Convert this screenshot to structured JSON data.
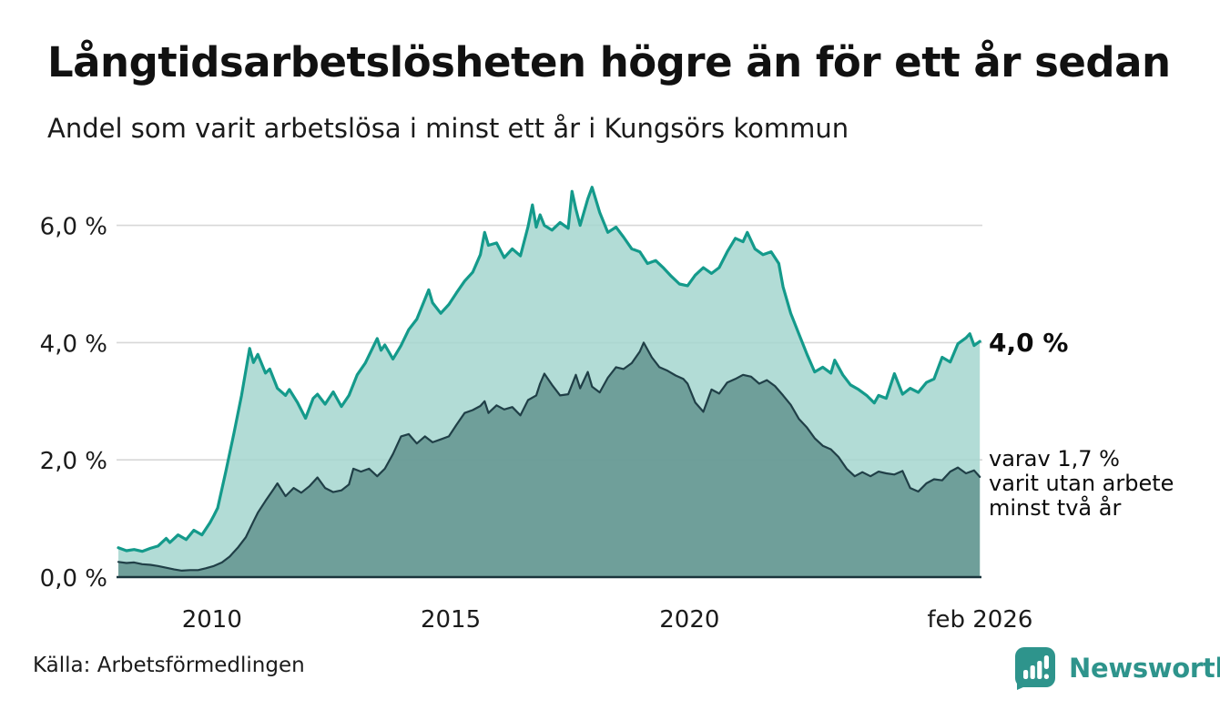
{
  "header": {
    "title": "Långtidsarbetslösheten högre än för ett år sedan",
    "subtitle": "Andel som varit arbetslösa i minst ett år i Kungsörs kommun"
  },
  "annotations": {
    "series1_end_value": "4,0 %",
    "series2_line1": "varav 1,7 %",
    "series2_line2": "varit utan arbete",
    "series2_line3": "minst två år"
  },
  "footer": {
    "source": "Källa: Arbetsförmedlingen",
    "brand_name": "Newsworthy"
  },
  "colors": {
    "background": "#ffffff",
    "title_text": "#111111",
    "body_text": "#1b1b1b",
    "series1_line": "#149a8b",
    "series1_fill": "#a5d6cf",
    "series2_line": "#203f47",
    "series2_fill": "#63948f",
    "gridline": "#d7d7d7",
    "axis_line": "#1a343c",
    "brand_teal": "#2e948c"
  },
  "chart_data": {
    "type": "area",
    "title": "Långtidsarbetslösheten högre än för ett år sedan",
    "subtitle": "Andel som varit arbetslösa i minst ett år i Kungsörs kommun",
    "unit": "percent of workforce",
    "x_domain": [
      2008.04,
      2026.083
    ],
    "ylim": [
      0,
      6.85
    ],
    "grid": true,
    "legend_position": "right-edge-labels",
    "x_ticks": [
      {
        "label": "2010",
        "year": 2010
      },
      {
        "label": "2015",
        "year": 2015
      },
      {
        "label": "2020",
        "year": 2020
      },
      {
        "label": "feb 2026",
        "year": 2026.083
      }
    ],
    "y_ticks": [
      {
        "label": "0,0 %",
        "value": 0
      },
      {
        "label": "2,0 %",
        "value": 2
      },
      {
        "label": "4,0 %",
        "value": 4
      },
      {
        "label": "6,0 %",
        "value": 6
      }
    ],
    "series": [
      {
        "name": "Arbetslösa minst ett år",
        "end_label": "4,0 %",
        "points": [
          [
            2008.04,
            0.5
          ],
          [
            2008.21,
            0.45
          ],
          [
            2008.37,
            0.47
          ],
          [
            2008.54,
            0.44
          ],
          [
            2008.71,
            0.49
          ],
          [
            2008.87,
            0.53
          ],
          [
            2009.04,
            0.66
          ],
          [
            2009.12,
            0.59
          ],
          [
            2009.29,
            0.72
          ],
          [
            2009.46,
            0.64
          ],
          [
            2009.62,
            0.8
          ],
          [
            2009.79,
            0.72
          ],
          [
            2009.96,
            0.93
          ],
          [
            2010.04,
            1.05
          ],
          [
            2010.12,
            1.18
          ],
          [
            2010.29,
            1.8
          ],
          [
            2010.46,
            2.45
          ],
          [
            2010.62,
            3.1
          ],
          [
            2010.79,
            3.9
          ],
          [
            2010.87,
            3.66
          ],
          [
            2010.96,
            3.8
          ],
          [
            2011.12,
            3.48
          ],
          [
            2011.21,
            3.55
          ],
          [
            2011.37,
            3.22
          ],
          [
            2011.54,
            3.1
          ],
          [
            2011.62,
            3.2
          ],
          [
            2011.79,
            2.98
          ],
          [
            2011.96,
            2.71
          ],
          [
            2012.12,
            3.05
          ],
          [
            2012.21,
            3.12
          ],
          [
            2012.37,
            2.95
          ],
          [
            2012.54,
            3.16
          ],
          [
            2012.71,
            2.91
          ],
          [
            2012.87,
            3.1
          ],
          [
            2013.04,
            3.45
          ],
          [
            2013.21,
            3.65
          ],
          [
            2013.46,
            4.07
          ],
          [
            2013.54,
            3.87
          ],
          [
            2013.62,
            3.96
          ],
          [
            2013.79,
            3.72
          ],
          [
            2013.96,
            3.95
          ],
          [
            2014.12,
            4.22
          ],
          [
            2014.29,
            4.4
          ],
          [
            2014.54,
            4.9
          ],
          [
            2014.62,
            4.68
          ],
          [
            2014.79,
            4.5
          ],
          [
            2014.96,
            4.65
          ],
          [
            2015.12,
            4.85
          ],
          [
            2015.29,
            5.05
          ],
          [
            2015.46,
            5.2
          ],
          [
            2015.62,
            5.5
          ],
          [
            2015.71,
            5.88
          ],
          [
            2015.79,
            5.66
          ],
          [
            2015.96,
            5.7
          ],
          [
            2016.12,
            5.45
          ],
          [
            2016.29,
            5.6
          ],
          [
            2016.46,
            5.48
          ],
          [
            2016.62,
            5.98
          ],
          [
            2016.71,
            6.35
          ],
          [
            2016.79,
            5.97
          ],
          [
            2016.87,
            6.18
          ],
          [
            2016.96,
            6.0
          ],
          [
            2017.12,
            5.92
          ],
          [
            2017.29,
            6.05
          ],
          [
            2017.46,
            5.95
          ],
          [
            2017.54,
            6.58
          ],
          [
            2017.62,
            6.28
          ],
          [
            2017.71,
            6.0
          ],
          [
            2017.87,
            6.45
          ],
          [
            2017.96,
            6.65
          ],
          [
            2018.12,
            6.22
          ],
          [
            2018.29,
            5.88
          ],
          [
            2018.46,
            5.97
          ],
          [
            2018.62,
            5.8
          ],
          [
            2018.79,
            5.6
          ],
          [
            2018.96,
            5.55
          ],
          [
            2019.12,
            5.35
          ],
          [
            2019.29,
            5.4
          ],
          [
            2019.46,
            5.27
          ],
          [
            2019.62,
            5.13
          ],
          [
            2019.79,
            5.0
          ],
          [
            2019.96,
            4.97
          ],
          [
            2020.12,
            5.15
          ],
          [
            2020.29,
            5.28
          ],
          [
            2020.46,
            5.18
          ],
          [
            2020.62,
            5.28
          ],
          [
            2020.79,
            5.55
          ],
          [
            2020.96,
            5.78
          ],
          [
            2021.12,
            5.72
          ],
          [
            2021.21,
            5.88
          ],
          [
            2021.37,
            5.6
          ],
          [
            2021.54,
            5.5
          ],
          [
            2021.71,
            5.55
          ],
          [
            2021.87,
            5.35
          ],
          [
            2021.96,
            4.95
          ],
          [
            2022.12,
            4.5
          ],
          [
            2022.29,
            4.15
          ],
          [
            2022.46,
            3.8
          ],
          [
            2022.62,
            3.5
          ],
          [
            2022.79,
            3.58
          ],
          [
            2022.96,
            3.48
          ],
          [
            2023.04,
            3.7
          ],
          [
            2023.21,
            3.45
          ],
          [
            2023.37,
            3.28
          ],
          [
            2023.54,
            3.2
          ],
          [
            2023.71,
            3.1
          ],
          [
            2023.87,
            2.97
          ],
          [
            2023.96,
            3.1
          ],
          [
            2024.12,
            3.05
          ],
          [
            2024.29,
            3.47
          ],
          [
            2024.46,
            3.12
          ],
          [
            2024.62,
            3.22
          ],
          [
            2024.79,
            3.15
          ],
          [
            2024.96,
            3.32
          ],
          [
            2025.12,
            3.38
          ],
          [
            2025.29,
            3.75
          ],
          [
            2025.46,
            3.67
          ],
          [
            2025.62,
            3.98
          ],
          [
            2025.79,
            4.08
          ],
          [
            2025.87,
            4.15
          ],
          [
            2025.96,
            3.95
          ],
          [
            2026.08,
            4.02
          ]
        ]
      },
      {
        "name": "varav arbetslösa minst två år",
        "end_label": "varav 1,7 % varit utan arbete minst två år",
        "points": [
          [
            2008.04,
            0.26
          ],
          [
            2008.21,
            0.24
          ],
          [
            2008.37,
            0.25
          ],
          [
            2008.54,
            0.22
          ],
          [
            2008.71,
            0.21
          ],
          [
            2008.87,
            0.19
          ],
          [
            2009.04,
            0.16
          ],
          [
            2009.21,
            0.13
          ],
          [
            2009.37,
            0.11
          ],
          [
            2009.54,
            0.12
          ],
          [
            2009.71,
            0.12
          ],
          [
            2009.87,
            0.15
          ],
          [
            2010.04,
            0.19
          ],
          [
            2010.21,
            0.25
          ],
          [
            2010.37,
            0.35
          ],
          [
            2010.54,
            0.5
          ],
          [
            2010.71,
            0.68
          ],
          [
            2010.87,
            0.95
          ],
          [
            2010.96,
            1.1
          ],
          [
            2011.12,
            1.3
          ],
          [
            2011.29,
            1.5
          ],
          [
            2011.37,
            1.6
          ],
          [
            2011.54,
            1.38
          ],
          [
            2011.71,
            1.52
          ],
          [
            2011.87,
            1.44
          ],
          [
            2012.04,
            1.55
          ],
          [
            2012.21,
            1.7
          ],
          [
            2012.37,
            1.52
          ],
          [
            2012.54,
            1.45
          ],
          [
            2012.71,
            1.48
          ],
          [
            2012.87,
            1.58
          ],
          [
            2012.96,
            1.85
          ],
          [
            2013.12,
            1.8
          ],
          [
            2013.29,
            1.85
          ],
          [
            2013.46,
            1.72
          ],
          [
            2013.62,
            1.85
          ],
          [
            2013.79,
            2.1
          ],
          [
            2013.96,
            2.4
          ],
          [
            2014.12,
            2.44
          ],
          [
            2014.29,
            2.28
          ],
          [
            2014.46,
            2.4
          ],
          [
            2014.62,
            2.3
          ],
          [
            2014.79,
            2.35
          ],
          [
            2014.96,
            2.4
          ],
          [
            2015.12,
            2.6
          ],
          [
            2015.29,
            2.8
          ],
          [
            2015.46,
            2.85
          ],
          [
            2015.62,
            2.92
          ],
          [
            2015.71,
            3.0
          ],
          [
            2015.79,
            2.8
          ],
          [
            2015.96,
            2.93
          ],
          [
            2016.12,
            2.86
          ],
          [
            2016.29,
            2.9
          ],
          [
            2016.46,
            2.76
          ],
          [
            2016.62,
            3.02
          ],
          [
            2016.79,
            3.1
          ],
          [
            2016.87,
            3.3
          ],
          [
            2016.96,
            3.47
          ],
          [
            2017.12,
            3.28
          ],
          [
            2017.29,
            3.1
          ],
          [
            2017.46,
            3.12
          ],
          [
            2017.62,
            3.45
          ],
          [
            2017.71,
            3.22
          ],
          [
            2017.87,
            3.5
          ],
          [
            2017.96,
            3.25
          ],
          [
            2018.12,
            3.15
          ],
          [
            2018.29,
            3.4
          ],
          [
            2018.46,
            3.58
          ],
          [
            2018.62,
            3.55
          ],
          [
            2018.79,
            3.65
          ],
          [
            2018.96,
            3.85
          ],
          [
            2019.04,
            4.0
          ],
          [
            2019.21,
            3.75
          ],
          [
            2019.37,
            3.58
          ],
          [
            2019.54,
            3.52
          ],
          [
            2019.71,
            3.44
          ],
          [
            2019.87,
            3.38
          ],
          [
            2019.96,
            3.3
          ],
          [
            2020.12,
            2.98
          ],
          [
            2020.29,
            2.82
          ],
          [
            2020.46,
            3.2
          ],
          [
            2020.62,
            3.13
          ],
          [
            2020.79,
            3.32
          ],
          [
            2020.96,
            3.38
          ],
          [
            2021.12,
            3.45
          ],
          [
            2021.29,
            3.42
          ],
          [
            2021.46,
            3.3
          ],
          [
            2021.62,
            3.36
          ],
          [
            2021.79,
            3.26
          ],
          [
            2021.96,
            3.1
          ],
          [
            2022.12,
            2.94
          ],
          [
            2022.29,
            2.7
          ],
          [
            2022.46,
            2.55
          ],
          [
            2022.62,
            2.37
          ],
          [
            2022.79,
            2.24
          ],
          [
            2022.96,
            2.18
          ],
          [
            2023.12,
            2.05
          ],
          [
            2023.29,
            1.85
          ],
          [
            2023.46,
            1.72
          ],
          [
            2023.62,
            1.79
          ],
          [
            2023.79,
            1.72
          ],
          [
            2023.96,
            1.8
          ],
          [
            2024.12,
            1.77
          ],
          [
            2024.29,
            1.75
          ],
          [
            2024.46,
            1.81
          ],
          [
            2024.62,
            1.52
          ],
          [
            2024.79,
            1.46
          ],
          [
            2024.96,
            1.6
          ],
          [
            2025.12,
            1.67
          ],
          [
            2025.29,
            1.65
          ],
          [
            2025.46,
            1.8
          ],
          [
            2025.62,
            1.87
          ],
          [
            2025.79,
            1.77
          ],
          [
            2025.96,
            1.82
          ],
          [
            2026.08,
            1.71
          ]
        ]
      }
    ]
  }
}
